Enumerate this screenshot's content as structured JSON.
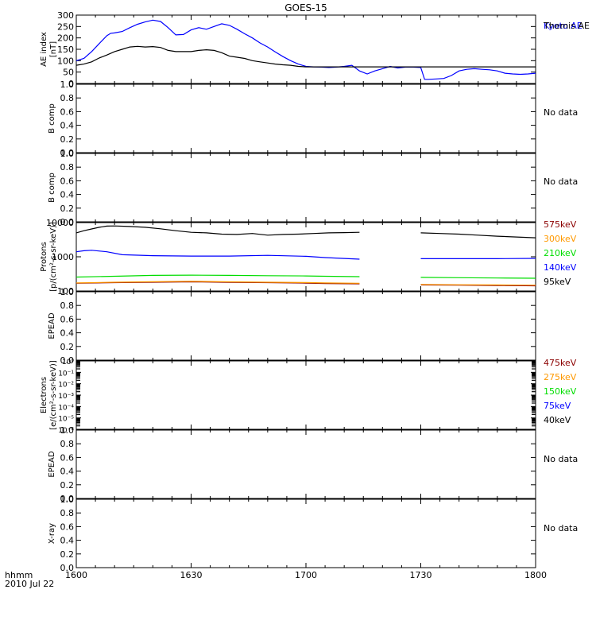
{
  "title": "GOES-15",
  "footer": {
    "time_label": "hhmm",
    "date_label": "2010 Jul 22"
  },
  "no_data_label": "No data",
  "chart_data": [
    {
      "type": "line",
      "ylabel": "AE index\n[nT]",
      "ylim": [
        0,
        300
      ],
      "yticks": [
        "0",
        "50",
        "100",
        "150",
        "200",
        "250",
        "300"
      ],
      "ytick_values": [
        0,
        50,
        100,
        150,
        200,
        250,
        300
      ],
      "xlim": [
        0,
        120
      ],
      "xticks": [
        "1600",
        "1630",
        "1700",
        "1730",
        "1800"
      ],
      "xtick_values": [
        0,
        30,
        60,
        90,
        120
      ],
      "series": [
        {
          "name": "Kyoto AE",
          "color": "#0000ff",
          "x": [
            0,
            2,
            4,
            6,
            8,
            9,
            10,
            12,
            14,
            16,
            18,
            20,
            22,
            24,
            26,
            28,
            30,
            32,
            34,
            36,
            38,
            40,
            42,
            44,
            46,
            48,
            50,
            52,
            54,
            56,
            58,
            60,
            62,
            64,
            66,
            68,
            70,
            72,
            74,
            76,
            78,
            80,
            82,
            84,
            86,
            88,
            90,
            91,
            92,
            94,
            96,
            98,
            100,
            102,
            104,
            106,
            108,
            110,
            112,
            114,
            116,
            118,
            120
          ],
          "y": [
            100,
            110,
            140,
            175,
            210,
            220,
            222,
            228,
            245,
            260,
            270,
            278,
            272,
            245,
            213,
            215,
            235,
            245,
            238,
            250,
            262,
            255,
            238,
            218,
            200,
            178,
            160,
            138,
            118,
            100,
            85,
            75,
            73,
            72,
            70,
            72,
            75,
            80,
            55,
            42,
            55,
            65,
            75,
            68,
            72,
            72,
            70,
            18,
            18,
            20,
            22,
            35,
            55,
            62,
            65,
            62,
            60,
            55,
            45,
            42,
            40,
            42,
            45
          ]
        },
        {
          "name": "Themis AE",
          "color": "#000000",
          "x": [
            0,
            2,
            4,
            6,
            8,
            10,
            12,
            14,
            16,
            18,
            20,
            22,
            24,
            26,
            28,
            30,
            32,
            34,
            36,
            38,
            40,
            42,
            44,
            46,
            48,
            50,
            52,
            54,
            56,
            58,
            60,
            120
          ],
          "y": [
            80,
            85,
            95,
            112,
            125,
            140,
            150,
            160,
            163,
            160,
            162,
            158,
            145,
            140,
            140,
            140,
            145,
            148,
            145,
            135,
            120,
            115,
            110,
            100,
            95,
            90,
            85,
            82,
            80,
            75,
            73,
            73
          ]
        }
      ]
    },
    {
      "type": "line",
      "ylabel": "B comp",
      "ylim": [
        0,
        1
      ],
      "yticks": [
        "0.0",
        "0.2",
        "0.4",
        "0.6",
        "0.8",
        "1.0"
      ],
      "ytick_values": [
        0,
        0.2,
        0.4,
        0.6,
        0.8,
        1.0
      ],
      "series": []
    },
    {
      "type": "line",
      "ylabel": "B comp",
      "ylim": [
        0,
        1
      ],
      "yticks": [
        "0.0",
        "0.2",
        "0.4",
        "0.6",
        "0.8",
        "1.0"
      ],
      "ytick_values": [
        0,
        0.2,
        0.4,
        0.6,
        0.8,
        1.0
      ],
      "series": []
    },
    {
      "type": "line",
      "ylabel": "Protons\n[p/(cm²-s-sr-keV)]",
      "log_scale": true,
      "ylim": [
        100,
        10000
      ],
      "yticks": [
        "100",
        "1000",
        "10000"
      ],
      "ytick_values": [
        100,
        1000,
        10000
      ],
      "series": [
        {
          "name": "575keV",
          "color": "#8b0000",
          "x": [
            0,
            10,
            20,
            30,
            40,
            50,
            60,
            65,
            74,
            90,
            100,
            110,
            120
          ],
          "y": [
            168,
            175,
            180,
            185,
            178,
            175,
            170,
            165,
            162,
            150,
            148,
            145,
            142
          ]
        },
        {
          "name": "300keV",
          "color": "#ff9900",
          "x": [
            0,
            10,
            20,
            30,
            40,
            50,
            60,
            65,
            74,
            90,
            100,
            110,
            120
          ],
          "y": [
            172,
            180,
            186,
            192,
            185,
            180,
            176,
            172,
            168,
            155,
            152,
            150,
            148
          ]
        },
        {
          "name": "210keV",
          "color": "#00dd00",
          "x": [
            0,
            10,
            20,
            30,
            40,
            50,
            60,
            65,
            74,
            90,
            100,
            110,
            120
          ],
          "y": [
            255,
            270,
            285,
            290,
            285,
            280,
            275,
            270,
            262,
            250,
            245,
            240,
            235
          ]
        },
        {
          "name": "140keV",
          "color": "#0000ff",
          "x": [
            0,
            2,
            4,
            8,
            12,
            20,
            30,
            40,
            50,
            60,
            65,
            74,
            90,
            100,
            110,
            120
          ],
          "y": [
            1400,
            1500,
            1550,
            1400,
            1150,
            1080,
            1050,
            1050,
            1100,
            1030,
            950,
            850,
            880,
            880,
            880,
            900
          ]
        },
        {
          "name": "95keV",
          "color": "#000000",
          "x": [
            0,
            2,
            4,
            6,
            8,
            10,
            14,
            18,
            22,
            26,
            30,
            34,
            38,
            42,
            46,
            50,
            54,
            58,
            62,
            66,
            70,
            74,
            90,
            95,
            100,
            105,
            110,
            115,
            120
          ],
          "y": [
            5000,
            5800,
            6500,
            7300,
            7900,
            8000,
            7700,
            7300,
            6600,
            5800,
            5200,
            5000,
            4600,
            4500,
            4800,
            4300,
            4500,
            4600,
            4800,
            5000,
            5100,
            5200,
            5000,
            4800,
            4600,
            4300,
            4000,
            3800,
            3600
          ]
        }
      ],
      "gaps": [
        [
          74,
          90
        ]
      ]
    },
    {
      "type": "line",
      "ylabel": "EPEAD",
      "ylim": [
        0,
        1
      ],
      "yticks": [
        "0.0",
        "0.2",
        "0.4",
        "0.6",
        "0.8",
        "1.0"
      ],
      "ytick_values": [
        0,
        0.2,
        0.4,
        0.6,
        0.8,
        1.0
      ],
      "series": []
    },
    {
      "type": "line",
      "ylabel": "Electrons\n[e/(cm²-s-sr-keV)]",
      "log_scale": true,
      "ylim": [
        1e-06,
        1
      ],
      "yticks": [
        "10⁻⁶",
        "10⁻⁵",
        "10⁻⁴",
        "10⁻³",
        "10⁻²",
        "10⁻¹",
        "10⁰"
      ],
      "ytick_values": [
        1e-06,
        1e-05,
        0.0001,
        0.001,
        0.01,
        0.1,
        1
      ],
      "series": [
        {
          "name": "475keV",
          "color": "#8b0000",
          "x": [],
          "y": []
        },
        {
          "name": "275keV",
          "color": "#ff9900",
          "x": [],
          "y": []
        },
        {
          "name": "150keV",
          "color": "#00dd00",
          "x": [],
          "y": []
        },
        {
          "name": "75keV",
          "color": "#0000ff",
          "x": [],
          "y": []
        },
        {
          "name": "40keV",
          "color": "#000000",
          "x": [],
          "y": []
        }
      ]
    },
    {
      "type": "line",
      "ylabel": "EPEAD",
      "ylim": [
        0,
        1
      ],
      "yticks": [
        "0.0",
        "0.2",
        "0.4",
        "0.6",
        "0.8",
        "1.0"
      ],
      "ytick_values": [
        0,
        0.2,
        0.4,
        0.6,
        0.8,
        1.0
      ],
      "series": []
    },
    {
      "type": "line",
      "ylabel": "X-ray",
      "ylim": [
        0,
        1
      ],
      "yticks": [
        "0.0",
        "0.2",
        "0.4",
        "0.6",
        "0.8",
        "1.0"
      ],
      "ytick_values": [
        0,
        0.2,
        0.4,
        0.6,
        0.8,
        1.0
      ],
      "series": []
    }
  ]
}
